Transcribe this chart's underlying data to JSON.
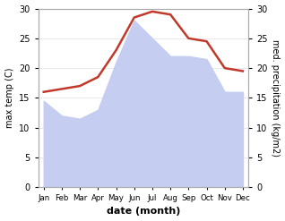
{
  "months": [
    "Jan",
    "Feb",
    "Mar",
    "Apr",
    "May",
    "Jun",
    "Jul",
    "Aug",
    "Sep",
    "Oct",
    "Nov",
    "Dec"
  ],
  "x": [
    0,
    1,
    2,
    3,
    4,
    5,
    6,
    7,
    8,
    9,
    10,
    11
  ],
  "temperature": [
    16,
    16.5,
    17,
    18.5,
    23,
    28.5,
    29.5,
    29,
    25,
    24.5,
    20,
    19.5
  ],
  "precipitation": [
    14.5,
    12,
    11.5,
    13,
    21,
    28,
    25,
    22,
    22,
    21.5,
    16,
    16
  ],
  "temp_color": "#c0392b",
  "precip_fill_color": "#c5cdf0",
  "ylim": [
    0,
    30
  ],
  "xlabel": "date (month)",
  "ylabel_left": "max temp (C)",
  "ylabel_right": "med. precipitation (kg/m2)",
  "yticks": [
    0,
    5,
    10,
    15,
    20,
    25,
    30
  ],
  "bg_color": "#ffffff",
  "spine_color": "#aaaaaa",
  "temp_linewidth": 1.8
}
